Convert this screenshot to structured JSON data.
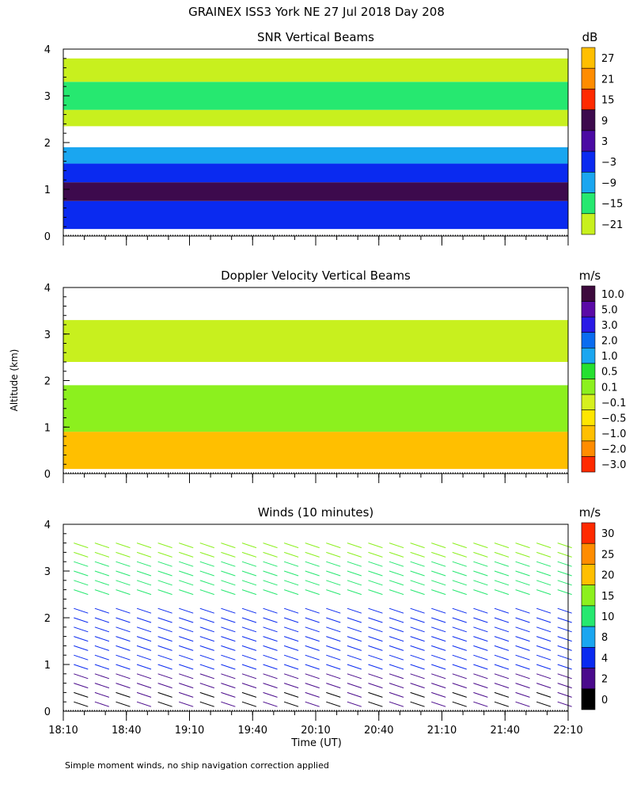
{
  "title": "GRAINEX ISS3 York NE  27 Jul 2018 Day 208",
  "y_axis_label": "Altitude (km)",
  "x_axis_label": "Time (UT)",
  "footnote": "Simple moment winds, no ship navigation correction applied",
  "chart_data": [
    {
      "type": "heatmap",
      "title": "SNR Vertical Beams",
      "xlim": [
        0,
        240
      ],
      "ylim": [
        0,
        4
      ],
      "y_ticks": [
        "0",
        "1",
        "2",
        "3",
        "4"
      ],
      "colorbar": {
        "unit": "dB",
        "labels": [
          "27",
          "21",
          "15",
          "9",
          "3",
          "−3",
          "−9",
          "−15",
          "−21"
        ],
        "colors": [
          "#ffbf00",
          "#ff8c00",
          "#ff2a00",
          "#3d0a4d",
          "#4a0aa3",
          "#0a2af0",
          "#1aa6f0",
          "#26e870",
          "#c8f01e"
        ]
      },
      "layers": [
        {
          "y0": 0.15,
          "y1": 0.75,
          "color": "#0a2af0"
        },
        {
          "y0": 0.75,
          "y1": 1.15,
          "color": "#3d0a4d"
        },
        {
          "y0": 1.15,
          "y1": 1.55,
          "color": "#0a2af0"
        },
        {
          "y0": 1.55,
          "y1": 1.9,
          "color": "#1aa6f0"
        },
        {
          "y0": 2.35,
          "y1": 2.7,
          "color": "#c8f01e"
        },
        {
          "y0": 2.7,
          "y1": 3.3,
          "color": "#26e870"
        },
        {
          "y0": 3.3,
          "y1": 3.8,
          "color": "#c8f01e"
        }
      ]
    },
    {
      "type": "heatmap",
      "title": "Doppler Velocity Vertical Beams",
      "xlim": [
        0,
        240
      ],
      "ylim": [
        0,
        4
      ],
      "y_ticks": [
        "0",
        "1",
        "2",
        "3",
        "4"
      ],
      "colorbar": {
        "unit": "m/s",
        "labels": [
          "10.0",
          "5.0",
          "3.0",
          "2.0",
          "1.0",
          "0.5",
          "0.1",
          "−0.1",
          "−0.5",
          "−1.0",
          "−2.0",
          "−3.0"
        ],
        "colors": [
          "#3d0a3d",
          "#5a0aa6",
          "#2a1ae6",
          "#0a6cf0",
          "#1aa6f0",
          "#26e030",
          "#8cf01e",
          "#d6f01e",
          "#ffe600",
          "#ffbf00",
          "#ff8c00",
          "#ff2a00"
        ]
      },
      "layers": [
        {
          "y0": 0.1,
          "y1": 0.9,
          "color": "#ffbf00"
        },
        {
          "y0": 0.9,
          "y1": 1.9,
          "color": "#8cf01e"
        },
        {
          "y0": 2.4,
          "y1": 3.3,
          "color": "#c8f01e"
        }
      ]
    },
    {
      "type": "wind_barbs",
      "title": "Winds (10 minutes)",
      "xlim": [
        0,
        240
      ],
      "ylim": [
        0,
        4
      ],
      "y_ticks": [
        "0",
        "1",
        "2",
        "3",
        "4"
      ],
      "x_ticks": [
        "18:10",
        "18:40",
        "19:10",
        "19:40",
        "20:10",
        "20:40",
        "21:10",
        "21:40",
        "22:10"
      ],
      "profile_times_min": [
        5,
        15,
        25,
        35,
        45,
        55,
        65,
        75,
        85,
        95,
        105,
        115,
        125,
        135,
        145,
        155,
        165,
        175,
        185,
        195,
        205,
        215,
        225,
        235
      ],
      "colorbar": {
        "unit": "m/s",
        "labels": [
          "30",
          "25",
          "20",
          "15",
          "10",
          "8",
          "4",
          "2",
          "0"
        ],
        "colors": [
          "#ff2a00",
          "#ff8c00",
          "#ffbf00",
          "#8cf01e",
          "#26e870",
          "#1aa6f0",
          "#0a2af0",
          "#4a0a8c",
          "#000000"
        ]
      }
    }
  ]
}
